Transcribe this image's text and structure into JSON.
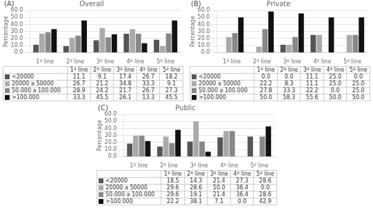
{
  "chart_data": [
    {
      "type": "bar",
      "title": "Overall",
      "annotations": [
        "(A)"
      ],
      "categories": [
        "1º line",
        "2º line",
        "3º line",
        "4º line",
        "5º line"
      ],
      "series": [
        {
          "name": "<20000",
          "color": "#555555",
          "values": [
            11.1,
            9.1,
            17.4,
            26.7,
            18.2
          ],
          "value_labels": [
            "11.1",
            "9.1",
            "17.4",
            "26.7",
            "18.2"
          ]
        },
        {
          "name": "20000 a 50000",
          "color": "#aaaaaa",
          "values": [
            26.7,
            21.2,
            34.8,
            33.3,
            9.1
          ],
          "value_labels": [
            "26.7",
            "21.2",
            "34.8",
            "33.3",
            "9.1"
          ]
        },
        {
          "name": "50.000 a 100.000",
          "color": "#888888",
          "values": [
            28.9,
            24.2,
            21.7,
            26.7,
            27.3
          ],
          "value_labels": [
            "28.9",
            "24.2",
            "21.7",
            "26.7",
            "27.3"
          ]
        },
        {
          "name": ">100.000",
          "color": "#111111",
          "values": [
            33.3,
            45.5,
            26.1,
            13.3,
            45.5
          ],
          "value_labels": [
            "33.3",
            "45.5",
            "26.1",
            "13.3",
            "45.5"
          ]
        }
      ],
      "ylim": [
        0,
        60
      ],
      "yticks": [
        {
          "value": 0,
          "label": "0.0"
        },
        {
          "value": 10,
          "label": "10.0"
        },
        {
          "value": 20,
          "label": "20.0"
        },
        {
          "value": 30,
          "label": "30.0"
        },
        {
          "value": 40,
          "label": "40.0"
        },
        {
          "value": 50,
          "label": "50.0"
        },
        {
          "value": 60,
          "label": "60.0"
        }
      ],
      "ylabel": "Percentage",
      "grid": true
    },
    {
      "type": "bar",
      "title": "Private",
      "annotations": [
        "(B)"
      ],
      "categories": [
        "1º line",
        "2º line",
        "3º line",
        "4º line",
        "5º line"
      ],
      "series": [
        {
          "name": "<20000",
          "color": "#555555",
          "values": [
            0.0,
            0.0,
            11.1,
            25.0,
            0.0
          ],
          "value_labels": [
            "0.0",
            "0.0",
            "11.1",
            "25.0",
            "0.0"
          ]
        },
        {
          "name": "20000 a 50000",
          "color": "#aaaaaa",
          "values": [
            22.2,
            8.3,
            11.1,
            25.0,
            25.0
          ],
          "value_labels": [
            "22.2",
            "8.3",
            "11.1",
            "25.0",
            "25.0"
          ]
        },
        {
          "name": "50.000 a 100.000",
          "color": "#888888",
          "values": [
            27.8,
            33.3,
            22.2,
            0.0,
            25.0
          ],
          "value_labels": [
            "27.8",
            "33.3",
            "22.2",
            "0.0",
            "25.0"
          ]
        },
        {
          "name": ">100.000",
          "color": "#111111",
          "values": [
            50.0,
            58.3,
            55.6,
            50.0,
            50.0
          ],
          "value_labels": [
            "50.0",
            "58.3",
            "55.6",
            "50.0",
            "50.0"
          ]
        }
      ],
      "ylim": [
        0,
        60
      ],
      "yticks": [
        {
          "value": 0,
          "label": "0.0"
        },
        {
          "value": 10,
          "label": "10.0"
        },
        {
          "value": 20,
          "label": "20.0"
        },
        {
          "value": 30,
          "label": "30.0"
        },
        {
          "value": 40,
          "label": "40.0"
        },
        {
          "value": 50,
          "label": "50.0"
        },
        {
          "value": 60,
          "label": "60.0"
        }
      ],
      "ylabel": "Percentage",
      "grid": true
    },
    {
      "type": "bar",
      "title": "Public",
      "annotations": [
        "(C)"
      ],
      "categories": [
        "1º line",
        "2º line",
        "3º line",
        "4º line",
        "5º line"
      ],
      "series": [
        {
          "name": "<20000",
          "color": "#555555",
          "values": [
            18.5,
            14.3,
            21.4,
            27.3,
            28.6
          ],
          "value_labels": [
            "18.5",
            "14.3",
            "21.4",
            "27.3",
            "28.6"
          ]
        },
        {
          "name": "20000 a 50000",
          "color": "#aaaaaa",
          "values": [
            29.6,
            28.6,
            50.0,
            36.4,
            0.0
          ],
          "value_labels": [
            "29.6",
            "28.6",
            "50.0",
            "36.4",
            "0.0"
          ]
        },
        {
          "name": "50.000 a 100.000",
          "color": "#888888",
          "values": [
            29.6,
            19.1,
            21.4,
            36.4,
            28.6
          ],
          "value_labels": [
            "29.6",
            "19.1",
            "21.4",
            "36.4",
            "28.6"
          ]
        },
        {
          "name": ">100.000",
          "color": "#111111",
          "values": [
            22.2,
            38.1,
            7.1,
            0.0,
            42.9
          ],
          "value_labels": [
            "22.2",
            "38.1",
            "7.1",
            "0.0",
            "42.9"
          ]
        }
      ],
      "ylim": [
        0,
        60
      ],
      "yticks": [
        {
          "value": 0,
          "label": "0.0"
        },
        {
          "value": 10,
          "label": "10.0"
        },
        {
          "value": 20,
          "label": "20.0"
        },
        {
          "value": 30,
          "label": "30.0"
        },
        {
          "value": 40,
          "label": "40.0"
        },
        {
          "value": 50,
          "label": "50.0"
        },
        {
          "value": 60,
          "label": "60.0"
        }
      ],
      "ylabel": "Percentage",
      "grid": true
    }
  ]
}
